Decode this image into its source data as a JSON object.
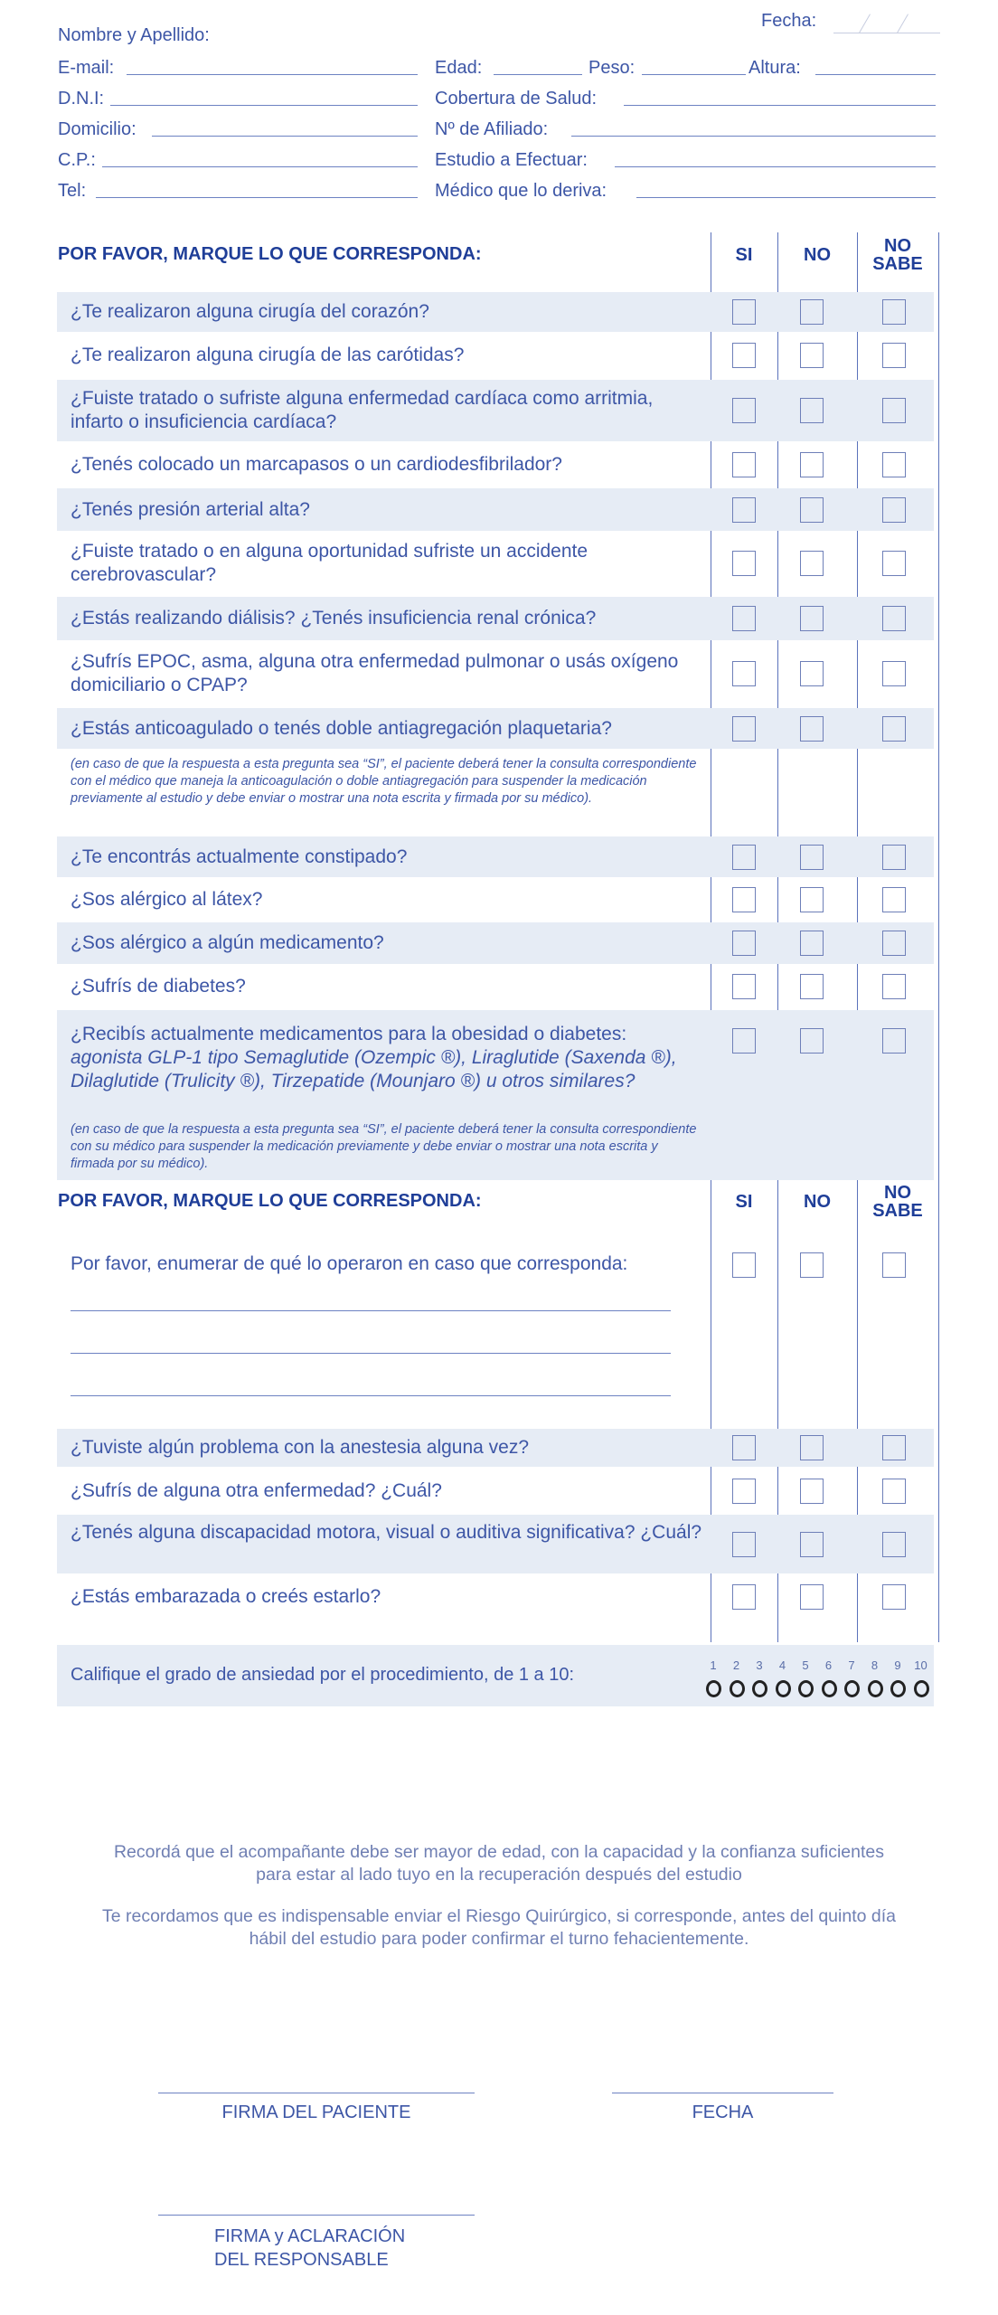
{
  "header": {
    "fecha": "Fecha:",
    "nombre": "Nombre y Apellido:",
    "fields_left": [
      "E-mail:",
      "D.N.I:",
      "Domicilio:",
      "C.P.:",
      "Tel:"
    ],
    "edad": "Edad:",
    "peso": "Peso:",
    "altura": "Altura:",
    "fields_right": [
      "Cobertura de Salud:",
      "Nº de Afiliado:",
      "Estudio a Efectuar:",
      "Médico que lo deriva:"
    ]
  },
  "section1": {
    "title": "POR FAVOR, MARQUE LO QUE CORRESPONDA:",
    "col_si": "SI",
    "col_no": "NO",
    "col_ns_1": "NO",
    "col_ns_2": "SABE"
  },
  "questions": [
    {
      "text": "¿Te realizaron alguna cirugía del corazón?"
    },
    {
      "text": "¿Te realizaron alguna cirugía de las carótidas?"
    },
    {
      "text": "¿Fuiste tratado o sufriste alguna enfermedad cardíaca como arritmia, infarto o insuficiencia cardíaca?"
    },
    {
      "text": "¿Tenés colocado un marcapasos o un cardiodesfibrilador?"
    },
    {
      "text": "¿Tenés presión arterial alta?"
    },
    {
      "text": "¿Fuiste tratado o en alguna oportunidad sufriste un accidente cerebrovascular?"
    },
    {
      "text": "¿Estás realizando diálisis? ¿Tenés insuficiencia renal crónica?"
    },
    {
      "text": "¿Sufrís EPOC, asma, alguna otra enfermedad pulmonar o usás oxígeno domiciliario o CPAP?"
    },
    {
      "text": "¿Estás anticoagulado o tenés doble antiagregación plaquetaria?"
    },
    {
      "text": "¿Te encontrás actualmente constipado?"
    },
    {
      "text": "¿Sos alérgico al látex?"
    },
    {
      "text": "¿Sos alérgico a algún medicamento?"
    },
    {
      "text": "¿Sufrís de diabetes?"
    },
    {
      "text": "¿Recibís actualmente medicamentos para la obesidad o diabetes:",
      "italic": "agonista GLP-1 tipo Semaglutide (Ozempic ®), Liraglutide (Saxenda ®), Dilaglutide (Trulicity ®), Tirzepatide (Mounjaro ®) u otros similares?"
    }
  ],
  "note_anticoag": "(en caso de que la respuesta a esta pregunta sea “SI”, el paciente deberá tener la consulta correspondiente con el médico que maneja la anticoagulación o doble antiagregación para suspender la medicación previamente al estudio y debe enviar o mostrar una nota escrita y firmada por su médico).",
  "note_glp1": "(en caso de que la respuesta a esta pregunta sea “SI”, el paciente deberá tener la consulta correspondiente con su médico para suspender la medicación previamente y debe enviar o mostrar una nota escrita y firmada por su médico).",
  "section2": {
    "title": "POR FAVOR, MARQUE LO QUE CORRESPONDA:",
    "col_si": "SI",
    "col_no": "NO",
    "col_ns_1": "NO",
    "col_ns_2": "SABE",
    "questions": [
      {
        "text": "Por favor, enumerar de qué lo operaron en caso que corresponda:"
      },
      {
        "text": "¿Tuviste algún problema con la anestesia alguna vez?"
      },
      {
        "text": "¿Sufrís de alguna otra enfermedad? ¿Cuál?"
      },
      {
        "text": "¿Tenés alguna discapacidad motora, visual o auditiva significativa? ¿Cuál?"
      },
      {
        "text": "¿Estás embarazada o creés estarlo?"
      }
    ]
  },
  "anxiety": {
    "label": "Califique el grado de ansiedad por el procedimiento, de 1 a 10:",
    "scale": [
      "1",
      "2",
      "3",
      "4",
      "5",
      "6",
      "7",
      "8",
      "9",
      "10"
    ]
  },
  "footer": {
    "note1": "Recordá que el acompañante debe ser mayor de edad, con la capacidad y la confianza suficientes para estar al lado tuyo en la recuperación después del estudio",
    "note2": "Te recordamos que es indispensable enviar el Riesgo Quirúrgico, si corresponde, antes del quinto día hábil del estudio para poder confirmar el turno fehacientemente.",
    "firma_paciente": "FIRMA DEL PACIENTE",
    "fecha": "FECHA",
    "firma_responsable_1": "FIRMA y ACLARACIÓN",
    "firma_responsable_2": "DEL RESPONSABLE"
  },
  "colors": {
    "text": "#3d56a6",
    "heading": "#1f3e98",
    "band": "#e6ecf5"
  }
}
